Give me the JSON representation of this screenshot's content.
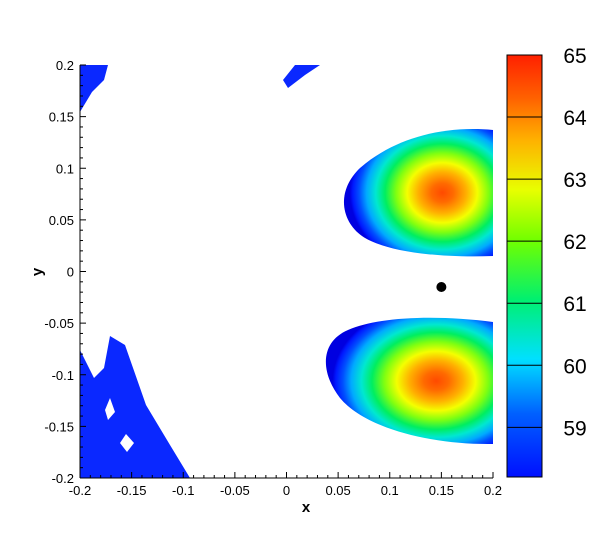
{
  "chart_data": {
    "type": "heatmap",
    "title": "",
    "xlabel": "x",
    "ylabel": "y",
    "xlim": [
      -0.2,
      0.2
    ],
    "ylim": [
      -0.2,
      0.2
    ],
    "x_ticks": [
      "-0.2",
      "-0.15",
      "-0.1",
      "-0.05",
      "0",
      "0.05",
      "0.1",
      "0.15",
      "0.2"
    ],
    "y_ticks": [
      "0.2",
      "0.15",
      "0.1",
      "0.05",
      "0",
      "-0.05",
      "-0.1",
      "-0.15",
      "-0.2"
    ],
    "colorbar": {
      "min": 58.2,
      "max": 65.0,
      "ticks": [
        "65",
        "64",
        "63",
        "62",
        "61",
        "60",
        "59"
      ],
      "levels": [
        59,
        60,
        61,
        62,
        63,
        64,
        65
      ]
    },
    "regions": [
      {
        "name": "upper-lobe",
        "center": [
          0.16,
          0.07
        ],
        "peak_value": 64.8
      },
      {
        "name": "lower-lobe",
        "center": [
          0.14,
          -0.105
        ],
        "peak_value": 64.7
      }
    ],
    "marker": {
      "x": 0.15,
      "y": -0.015
    },
    "colors": {
      "low": "#0a28ff",
      "gradient": [
        "#0000ff",
        "#0050ff",
        "#00d0ff",
        "#00ff80",
        "#80ff00",
        "#ffd000",
        "#ff8000",
        "#ff3000"
      ]
    }
  }
}
